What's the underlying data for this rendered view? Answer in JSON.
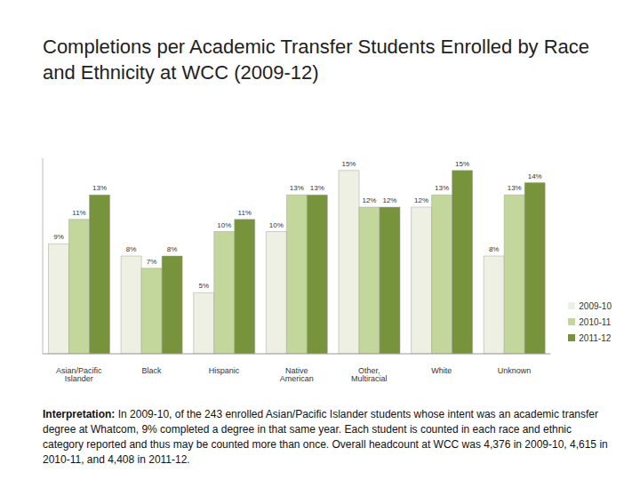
{
  "chart_data": {
    "type": "bar",
    "title": "Completions per Academic Transfer Students Enrolled by Race and Ethnicity at WCC (2009-12)",
    "categories": [
      "Asian/Pacific Islander",
      "Black",
      "Hispanic",
      "Native American",
      "Other, Multiracial",
      "White",
      "Unknown"
    ],
    "series": [
      {
        "name": "2009-10",
        "color": "#eef0e4",
        "values": [
          9,
          8,
          5,
          10,
          15,
          12,
          8
        ],
        "value_labels": [
          "9%",
          "8%",
          "5%",
          "10%",
          "15%",
          "12%",
          "8%"
        ]
      },
      {
        "name": "2010-11",
        "color": "#c3d69b",
        "values": [
          11,
          7,
          10,
          13,
          12,
          13,
          13
        ],
        "value_labels": [
          "11%",
          "7%",
          "10%",
          "13%",
          "12%",
          "13%",
          "13%"
        ]
      },
      {
        "name": "2011-12",
        "color": "#77933c",
        "values": [
          13,
          8,
          11,
          13,
          12,
          15,
          14
        ],
        "value_labels": [
          "13%",
          "8%",
          "11%",
          "13%",
          "12%",
          "15%",
          "14%"
        ]
      }
    ],
    "ylim": [
      0,
      16
    ],
    "yticks": [],
    "grid": false,
    "legend": "lower right",
    "data_labels": true,
    "tick_labels": "x",
    "annotation": {
      "label": "Interpretation:",
      "text": "In 2009-10, of the 243 enrolled Asian/Pacific Islander students whose intent was an academic transfer degree at Whatcom, 9% completed a degree in that same year. Each student is counted in each race and ethnic category reported and thus may be counted more than once. Overall headcount at WCC was 4,376 in 2009-10, 4,615 in 2010-11, and 4,408 in 2011-12."
    }
  }
}
